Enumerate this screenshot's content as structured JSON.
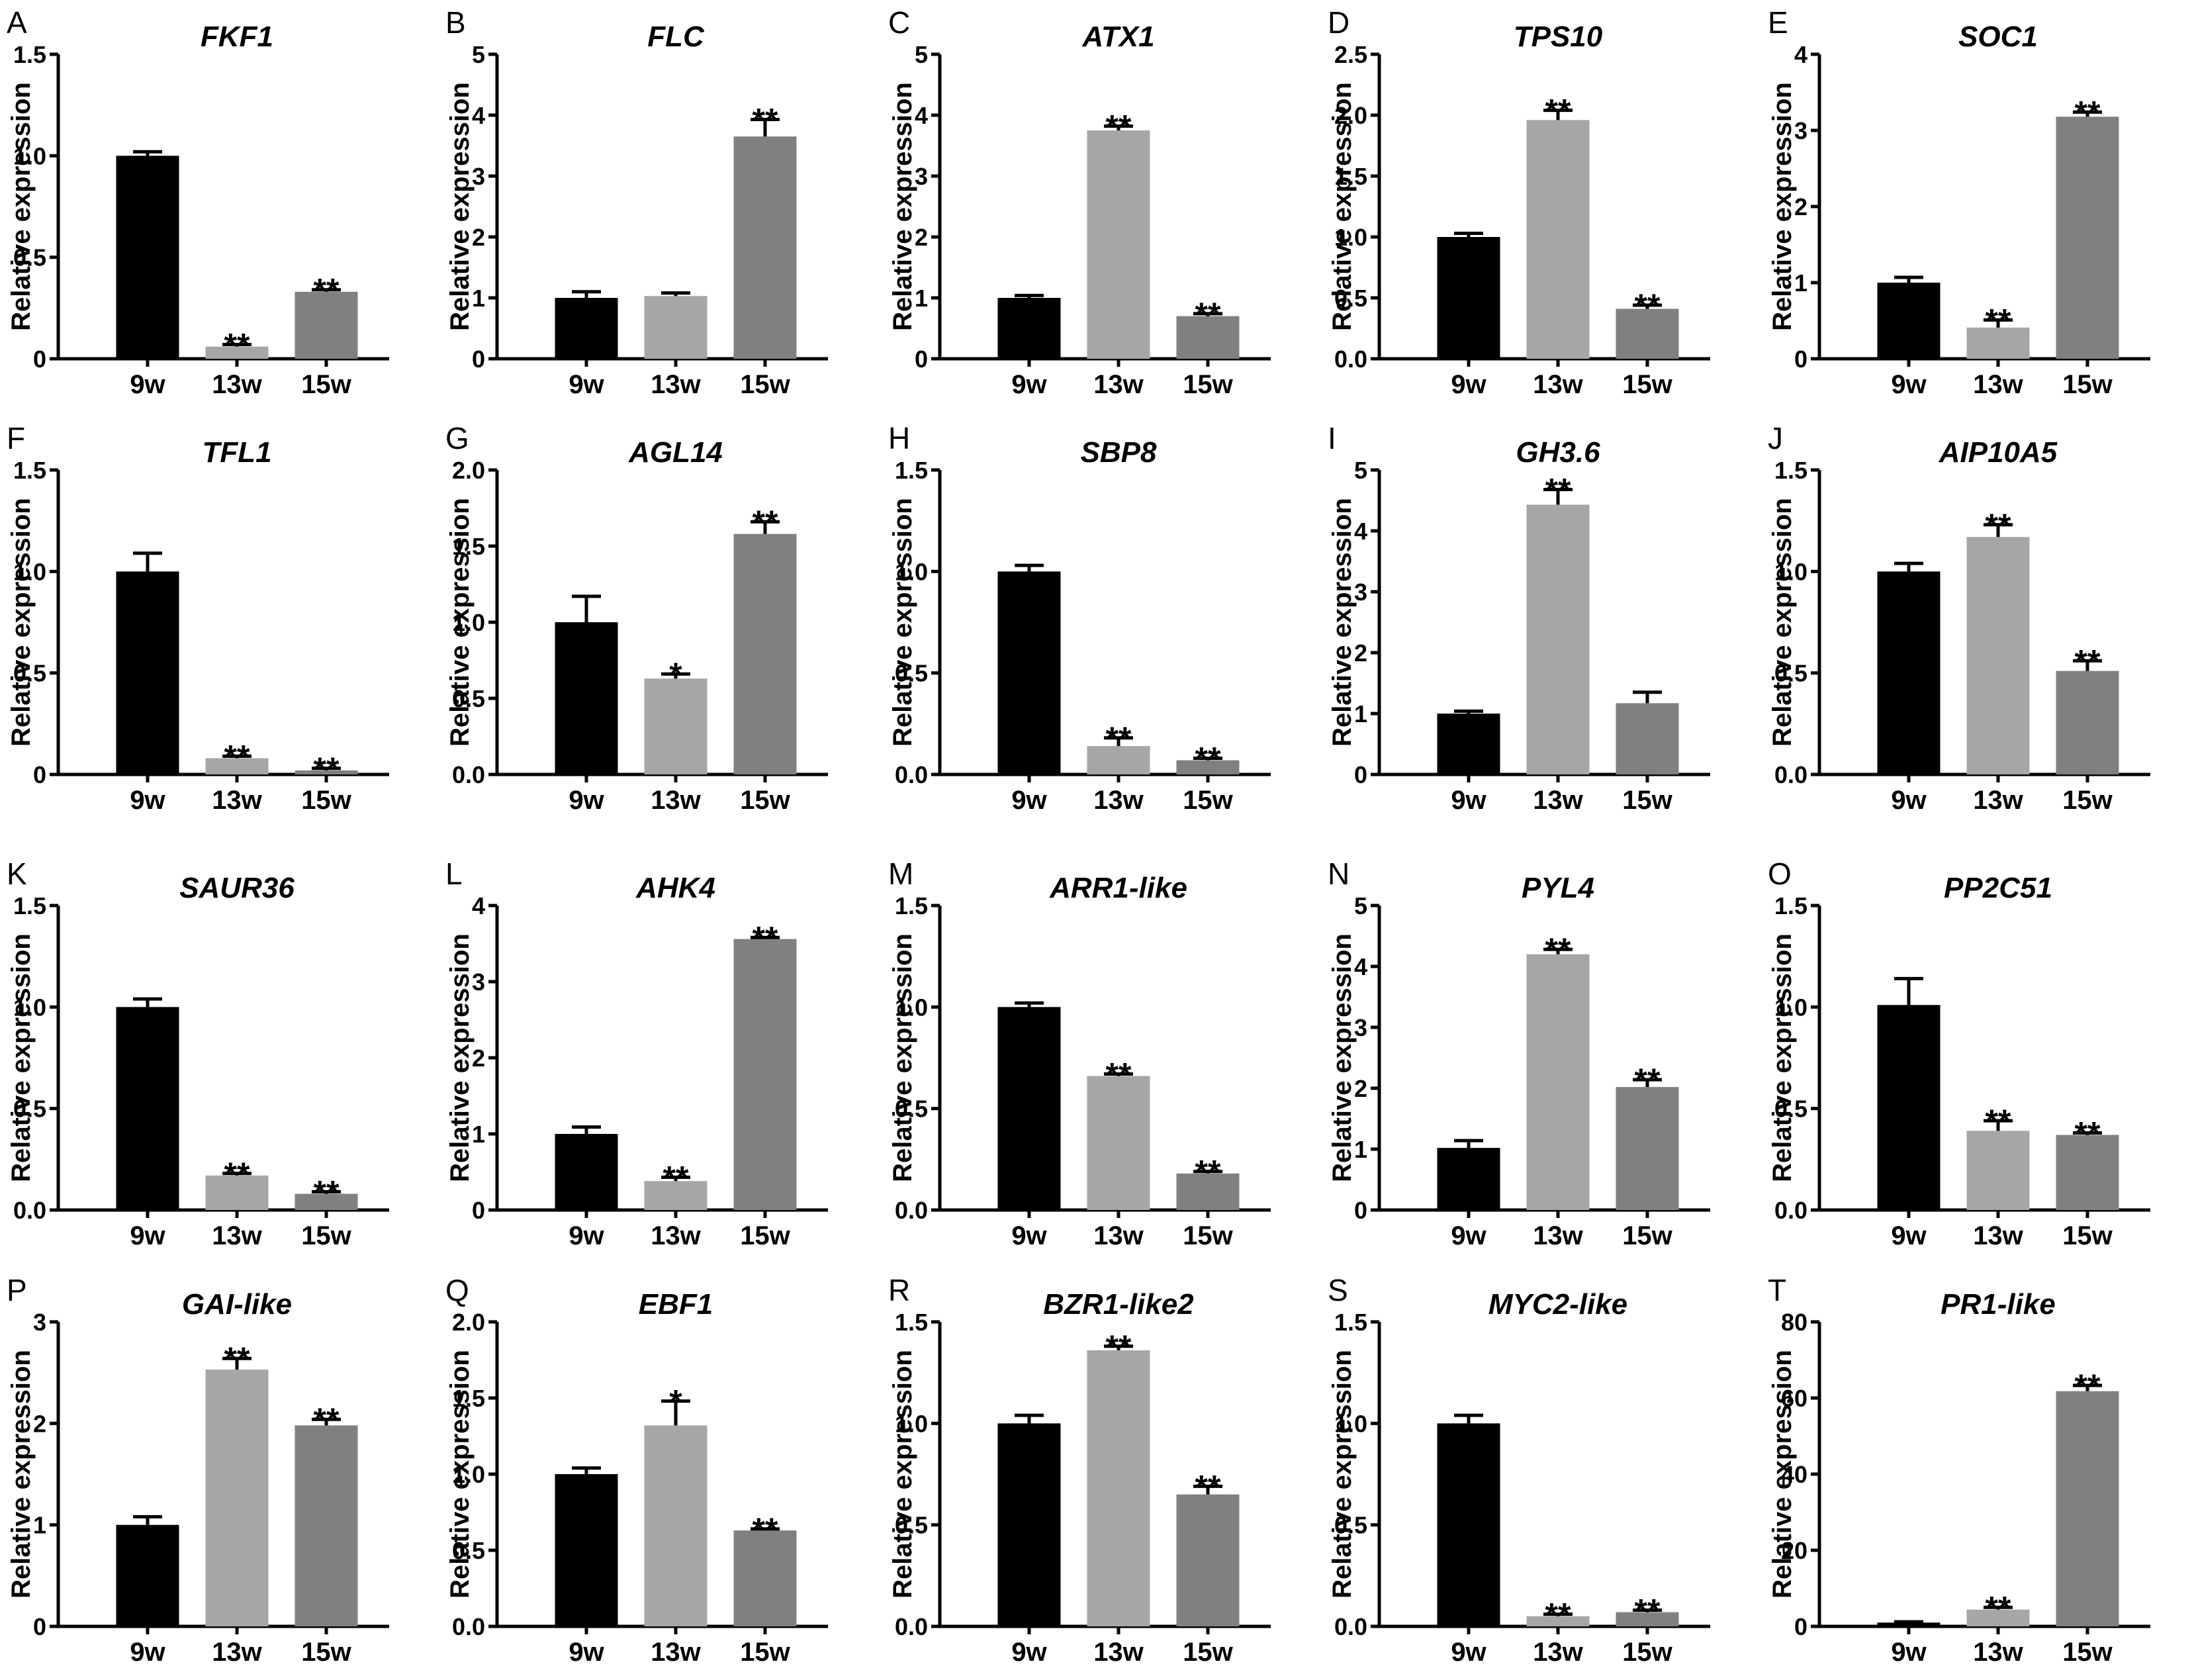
{
  "figure": {
    "colors": {
      "9w": "#000000",
      "13w": "#a6a6a8",
      "15w": "#808080",
      "text": "#000000"
    },
    "ylabel": "Relative expression",
    "categories": [
      "9w",
      "13w",
      "15w"
    ]
  },
  "chart_data": [
    {
      "panel": "A",
      "title": "FKF1",
      "type": "bar",
      "categories": [
        "9w",
        "13w",
        "15w"
      ],
      "values": [
        1.0,
        0.06,
        0.33
      ],
      "errors": [
        0.02,
        0.01,
        0.01
      ],
      "significance": [
        "",
        "**",
        "**"
      ],
      "ylabel": "Relative expression",
      "ylim": [
        0,
        1.5
      ],
      "yticks": [
        "0",
        "0.5",
        "1.0",
        "1.5"
      ]
    },
    {
      "panel": "B",
      "title": "FLC",
      "type": "bar",
      "categories": [
        "9w",
        "13w",
        "15w"
      ],
      "values": [
        1.0,
        1.03,
        3.65
      ],
      "errors": [
        0.1,
        0.05,
        0.28
      ],
      "significance": [
        "",
        "",
        "**"
      ],
      "ylabel": "Relative expression",
      "ylim": [
        0,
        5
      ],
      "yticks": [
        "0",
        "1",
        "2",
        "3",
        "4",
        "5"
      ]
    },
    {
      "panel": "C",
      "title": "ATX1",
      "type": "bar",
      "categories": [
        "9w",
        "13w",
        "15w"
      ],
      "values": [
        1.0,
        3.75,
        0.7
      ],
      "errors": [
        0.04,
        0.07,
        0.04
      ],
      "significance": [
        "",
        "**",
        "**"
      ],
      "ylabel": "Relative expression",
      "ylim": [
        0,
        5
      ],
      "yticks": [
        "0",
        "1",
        "2",
        "3",
        "4",
        "5"
      ]
    },
    {
      "panel": "D",
      "title": "TPS10",
      "type": "bar",
      "categories": [
        "9w",
        "13w",
        "15w"
      ],
      "values": [
        1.0,
        1.96,
        0.41
      ],
      "errors": [
        0.03,
        0.08,
        0.03
      ],
      "significance": [
        "",
        "**",
        "**"
      ],
      "ylabel": "Relative expression",
      "ylim": [
        0,
        2.5
      ],
      "yticks": [
        "0.0",
        "0.5",
        "1.0",
        "1.5",
        "2.0",
        "2.5"
      ]
    },
    {
      "panel": "E",
      "title": "SOC1",
      "type": "bar",
      "categories": [
        "9w",
        "13w",
        "15w"
      ],
      "values": [
        1.0,
        0.41,
        3.18
      ],
      "errors": [
        0.07,
        0.1,
        0.06
      ],
      "significance": [
        "",
        "**",
        "**"
      ],
      "ylabel": "Relative expression",
      "ylim": [
        0,
        4
      ],
      "yticks": [
        "0",
        "1",
        "2",
        "3",
        "4"
      ]
    },
    {
      "panel": "F",
      "title": "TFL1",
      "type": "bar",
      "categories": [
        "9w",
        "13w",
        "15w"
      ],
      "values": [
        1.0,
        0.08,
        0.02
      ],
      "errors": [
        0.09,
        0.01,
        0.01
      ],
      "significance": [
        "",
        "**",
        "**"
      ],
      "ylabel": "Relative expression",
      "ylim": [
        0,
        1.5
      ],
      "yticks": [
        "0",
        "0.5",
        "1.0",
        "1.5"
      ]
    },
    {
      "panel": "G",
      "title": "AGL14",
      "type": "bar",
      "categories": [
        "9w",
        "13w",
        "15w"
      ],
      "values": [
        1.0,
        0.63,
        1.58
      ],
      "errors": [
        0.17,
        0.03,
        0.08
      ],
      "significance": [
        "",
        "*",
        "**"
      ],
      "ylabel": "Relative expression",
      "ylim": [
        0,
        2.0
      ],
      "yticks": [
        "0.0",
        "0.5",
        "1.0",
        "1.5",
        "2.0"
      ]
    },
    {
      "panel": "H",
      "title": "SBP8",
      "type": "bar",
      "categories": [
        "9w",
        "13w",
        "15w"
      ],
      "values": [
        1.0,
        0.14,
        0.07
      ],
      "errors": [
        0.03,
        0.04,
        0.01
      ],
      "significance": [
        "",
        "**",
        "**"
      ],
      "ylabel": "Relative expression",
      "ylim": [
        0,
        1.5
      ],
      "yticks": [
        "0.0",
        "0.5",
        "1.0",
        "1.5"
      ]
    },
    {
      "panel": "I",
      "title": "GH3.6",
      "type": "bar",
      "categories": [
        "9w",
        "13w",
        "15w"
      ],
      "values": [
        1.0,
        4.43,
        1.17
      ],
      "errors": [
        0.04,
        0.25,
        0.18
      ],
      "significance": [
        "",
        "**",
        ""
      ],
      "ylabel": "Relative expression",
      "ylim": [
        0,
        5
      ],
      "yticks": [
        "0",
        "1",
        "2",
        "3",
        "4",
        "5"
      ]
    },
    {
      "panel": "J",
      "title": "AIP10A5",
      "type": "bar",
      "categories": [
        "9w",
        "13w",
        "15w"
      ],
      "values": [
        1.0,
        1.17,
        0.51
      ],
      "errors": [
        0.04,
        0.06,
        0.05
      ],
      "significance": [
        "",
        "**",
        "**"
      ],
      "ylabel": "Relative expression",
      "ylim": [
        0,
        1.5
      ],
      "yticks": [
        "0.0",
        "0.5",
        "1.0",
        "1.5"
      ]
    },
    {
      "panel": "K",
      "title": "SAUR36",
      "type": "bar",
      "categories": [
        "9w",
        "13w",
        "15w"
      ],
      "values": [
        1.0,
        0.17,
        0.08
      ],
      "errors": [
        0.04,
        0.01,
        0.01
      ],
      "significance": [
        "",
        "**",
        "**"
      ],
      "ylabel": "Relative expression",
      "ylim": [
        0,
        1.5
      ],
      "yticks": [
        "0.0",
        "0.5",
        "1.0",
        "1.5"
      ]
    },
    {
      "panel": "L",
      "title": "AHK4",
      "type": "bar",
      "categories": [
        "9w",
        "13w",
        "15w"
      ],
      "values": [
        1.0,
        0.38,
        3.56
      ],
      "errors": [
        0.09,
        0.05,
        0.02
      ],
      "significance": [
        "",
        "**",
        "**"
      ],
      "ylabel": "Relative expression",
      "ylim": [
        0,
        4
      ],
      "yticks": [
        "0",
        "1",
        "2",
        "3",
        "4"
      ]
    },
    {
      "panel": "M",
      "title": "ARR1-like",
      "type": "bar",
      "categories": [
        "9w",
        "13w",
        "15w"
      ],
      "values": [
        1.0,
        0.66,
        0.18
      ],
      "errors": [
        0.02,
        0.01,
        0.01
      ],
      "significance": [
        "",
        "**",
        "**"
      ],
      "ylabel": "Relative expression",
      "ylim": [
        0,
        1.5
      ],
      "yticks": [
        "0.0",
        "0.5",
        "1.0",
        "1.5"
      ]
    },
    {
      "panel": "N",
      "title": "PYL4",
      "type": "bar",
      "categories": [
        "9w",
        "13w",
        "15w"
      ],
      "values": [
        1.02,
        4.2,
        2.02
      ],
      "errors": [
        0.12,
        0.08,
        0.12
      ],
      "significance": [
        "",
        "**",
        "**"
      ],
      "ylabel": "Relative expression",
      "ylim": [
        0,
        5
      ],
      "yticks": [
        "0",
        "1",
        "2",
        "3",
        "4",
        "5"
      ]
    },
    {
      "panel": "O",
      "title": "PP2C51",
      "type": "bar",
      "categories": [
        "9w",
        "13w",
        "15w"
      ],
      "values": [
        1.01,
        0.39,
        0.37
      ],
      "errors": [
        0.13,
        0.05,
        0.01
      ],
      "significance": [
        "",
        "**",
        "**"
      ],
      "ylabel": "Relative expression",
      "ylim": [
        0,
        1.5
      ],
      "yticks": [
        "0.0",
        "0.5",
        "1.0",
        "1.5"
      ]
    },
    {
      "panel": "P",
      "title": "GAI-like",
      "type": "bar",
      "categories": [
        "9w",
        "13w",
        "15w"
      ],
      "values": [
        1.0,
        2.53,
        1.98
      ],
      "errors": [
        0.08,
        0.11,
        0.06
      ],
      "significance": [
        "",
        "**",
        "**"
      ],
      "ylabel": "Relative expression",
      "ylim": [
        0,
        3
      ],
      "yticks": [
        "0",
        "1",
        "2",
        "3"
      ]
    },
    {
      "panel": "Q",
      "title": "EBF1",
      "type": "bar",
      "categories": [
        "9w",
        "13w",
        "15w"
      ],
      "values": [
        1.0,
        1.32,
        0.63
      ],
      "errors": [
        0.04,
        0.16,
        0.01
      ],
      "significance": [
        "",
        "*",
        "**"
      ],
      "ylabel": "Relative expression",
      "ylim": [
        0,
        2.0
      ],
      "yticks": [
        "0.0",
        "0.5",
        "1.0",
        "1.5",
        "2.0"
      ]
    },
    {
      "panel": "R",
      "title": "BZR1-like2",
      "type": "bar",
      "categories": [
        "9w",
        "13w",
        "15w"
      ],
      "values": [
        1.0,
        1.36,
        0.65
      ],
      "errors": [
        0.04,
        0.02,
        0.04
      ],
      "significance": [
        "",
        "**",
        "**"
      ],
      "ylabel": "Relative expression",
      "ylim": [
        0,
        1.5
      ],
      "yticks": [
        "0.0",
        "0.5",
        "1.0",
        "1.5"
      ]
    },
    {
      "panel": "S",
      "title": "MYC2-like",
      "type": "bar",
      "categories": [
        "9w",
        "13w",
        "15w"
      ],
      "values": [
        1.0,
        0.05,
        0.07
      ],
      "errors": [
        0.04,
        0.01,
        0.01
      ],
      "significance": [
        "",
        "**",
        "**"
      ],
      "ylabel": "Relative expression",
      "ylim": [
        0,
        1.5
      ],
      "yticks": [
        "0.0",
        "0.5",
        "1.0",
        "1.5"
      ]
    },
    {
      "panel": "T",
      "title": "PR1-like",
      "type": "bar",
      "categories": [
        "9w",
        "13w",
        "15w"
      ],
      "values": [
        1.0,
        4.4,
        61.8
      ],
      "errors": [
        0.2,
        0.6,
        1.5
      ],
      "significance": [
        "",
        "**",
        "**"
      ],
      "ylabel": "Relative expression",
      "ylim": [
        0,
        80
      ],
      "yticks": [
        "0",
        "20",
        "40",
        "60",
        "80"
      ]
    }
  ]
}
